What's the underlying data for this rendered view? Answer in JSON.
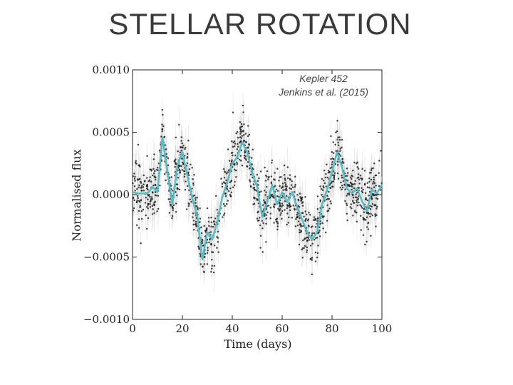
{
  "slide": {
    "title": "STELLAR ROTATION"
  },
  "chart_data": {
    "type": "scatter",
    "xlabel": "Time (days)",
    "ylabel": "Normalised flux",
    "xlim": [
      0,
      100
    ],
    "ylim": [
      -0.001,
      0.001
    ],
    "xticks": [
      "0",
      "20",
      "40",
      "60",
      "80",
      "100"
    ],
    "yticks": [
      "0.0010",
      "0.0005",
      "0.0000",
      "−0.0005",
      "−0.0010"
    ],
    "annotation": [
      "Kepler 452",
      "Jenkins et al. (2015)"
    ],
    "grid": false,
    "colors": {
      "points": "#1a1a1a",
      "errorbars": "#c8c8c8",
      "model": "#5bbcc4"
    },
    "series": [
      {
        "values_x": [
          0,
          2,
          4,
          6,
          8,
          10,
          12,
          14,
          16,
          18,
          20,
          22,
          24,
          26,
          28,
          30,
          32,
          34,
          36,
          38,
          40,
          42,
          44,
          46,
          48,
          50,
          52,
          54,
          56,
          58,
          60,
          62,
          64,
          66,
          68,
          70,
          72,
          74,
          76,
          78,
          80,
          82,
          84,
          86,
          88,
          90,
          92,
          94,
          96,
          98,
          100
        ],
        "values_y": [
          2e-05,
          1e-05,
          1e-05,
          1e-05,
          6e-05,
          2e-05,
          0.00046,
          0.00018,
          -8e-05,
          0.00024,
          0.00034,
          0.00015,
          -3e-05,
          -0.00018,
          -0.00052,
          -0.0003,
          -0.00036,
          -0.00022,
          -2e-05,
          0.0001,
          0.00025,
          0.0003,
          0.00042,
          0.00034,
          0.00018,
          6e-05,
          -0.00018,
          -6e-05,
          8e-05,
          -8e-05,
          2e-05,
          -6e-05,
          2e-05,
          -0.0001,
          -0.0002,
          -0.0003,
          -0.00036,
          -0.0003,
          -8e-05,
          4e-05,
          0.00018,
          0.00034,
          0.00022,
          5e-05,
          1e-05,
          5e-05,
          -5e-05,
          -0.00013,
          4e-05,
          1e-05,
          8e-05
        ]
      }
    ]
  }
}
